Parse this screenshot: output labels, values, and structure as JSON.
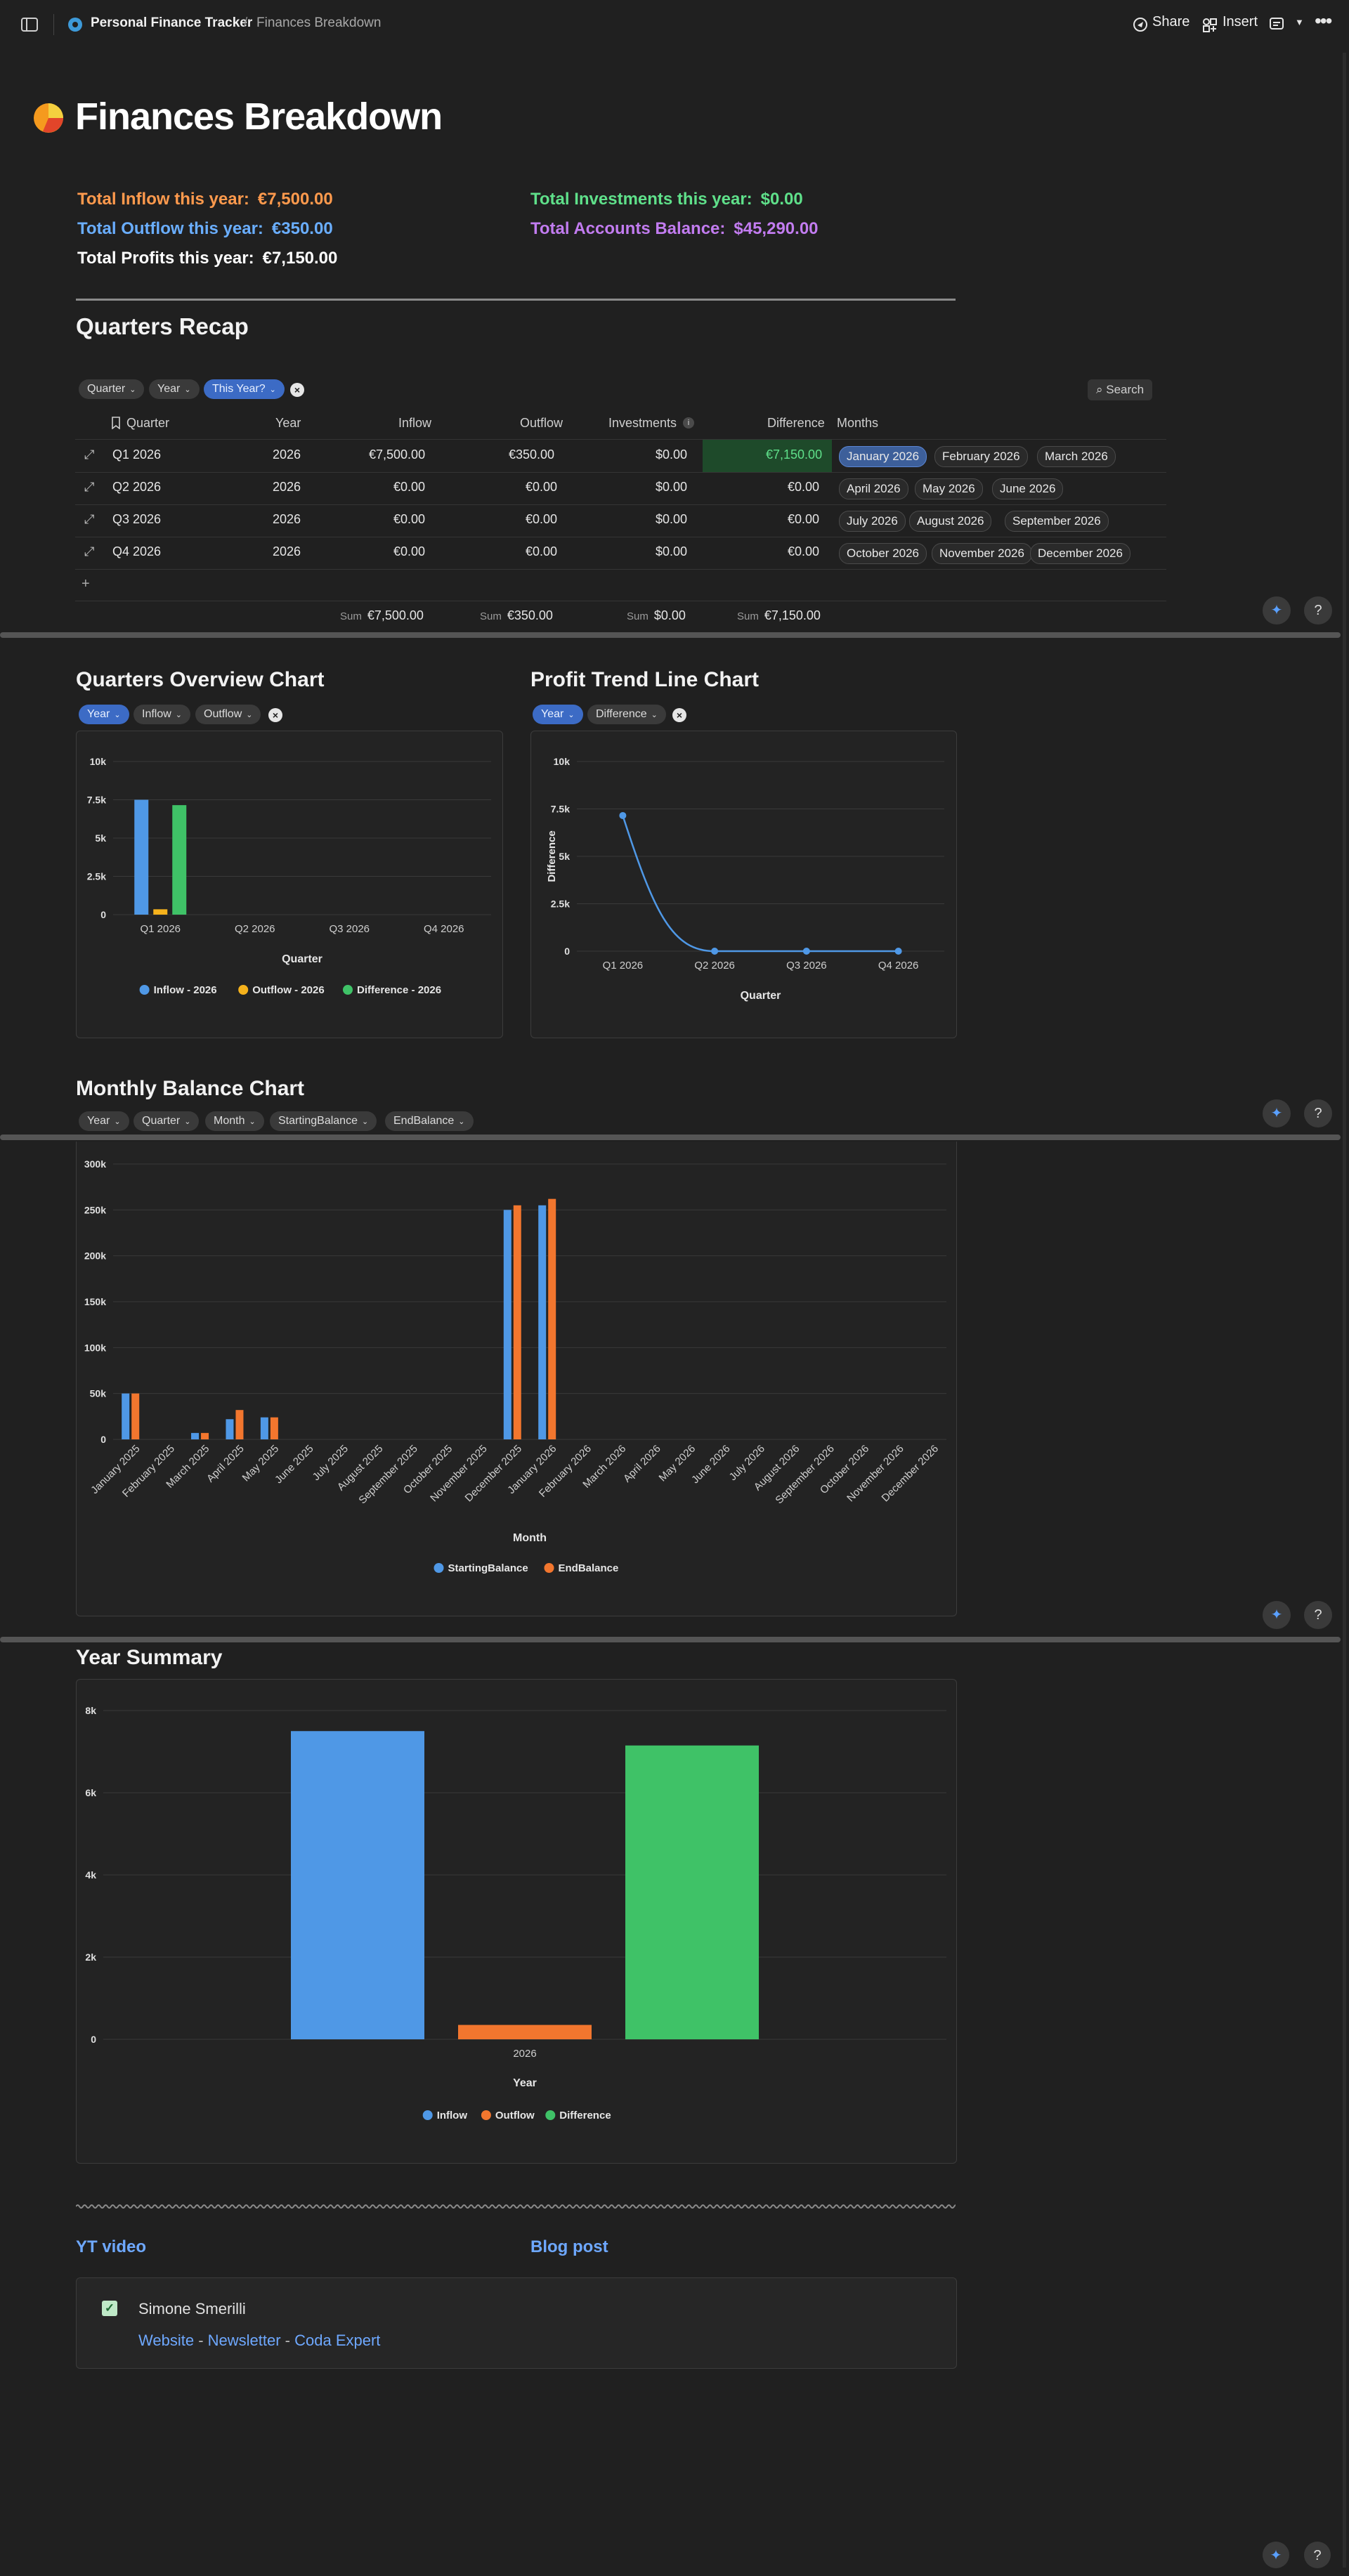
{
  "breadcrumb": {
    "doc_title": "Personal Finance Tracker",
    "separator": "/",
    "page": "Finances Breakdown"
  },
  "toolbar": {
    "share": "Share",
    "insert": "Insert"
  },
  "page_title": "Finances Breakdown",
  "stats": {
    "inflow": {
      "label": "Total Inflow this year:",
      "value": "€7,500.00",
      "color": "#ff9a4d"
    },
    "outflow": {
      "label": "Total Outflow this year:",
      "value": "€350.00",
      "color": "#6aaeff"
    },
    "profits": {
      "label": "Total Profits this year:",
      "value": "€7,150.00",
      "color": "#ffffff"
    },
    "investments": {
      "label": "Total Investments this year:",
      "value": "$0.00",
      "color": "#5fe08a"
    },
    "balance": {
      "label": "Total Accounts Balance:",
      "value": "$45,290.00",
      "color": "#c27cf0"
    }
  },
  "quarters_recap": {
    "title": "Quarters Recap",
    "filters": [
      "Quarter",
      "Year",
      "This Year?"
    ],
    "search": "Search",
    "columns": [
      "Quarter",
      "Year",
      "Inflow",
      "Outflow",
      "Investments",
      "Difference",
      "Months"
    ],
    "rows": [
      {
        "quarter": "Q1 2026",
        "year": "2026",
        "inflow": "€7,500.00",
        "outflow": "€350.00",
        "investments": "$0.00",
        "difference": "€7,150.00",
        "months": [
          "January 2026",
          "February 2026",
          "March 2026"
        ]
      },
      {
        "quarter": "Q2 2026",
        "year": "2026",
        "inflow": "€0.00",
        "outflow": "€0.00",
        "investments": "$0.00",
        "difference": "€0.00",
        "months": [
          "April 2026",
          "May 2026",
          "June 2026"
        ]
      },
      {
        "quarter": "Q3 2026",
        "year": "2026",
        "inflow": "€0.00",
        "outflow": "€0.00",
        "investments": "$0.00",
        "difference": "€0.00",
        "months": [
          "July 2026",
          "August 2026",
          "September 2026"
        ]
      },
      {
        "quarter": "Q4 2026",
        "year": "2026",
        "inflow": "€0.00",
        "outflow": "€0.00",
        "investments": "$0.00",
        "difference": "€0.00",
        "months": [
          "October 2026",
          "November 2026",
          "December 2026"
        ]
      }
    ],
    "add_row": "+",
    "sum_label": "Sum",
    "sums": {
      "inflow": "€7,500.00",
      "outflow": "€350.00",
      "investments": "$0.00",
      "difference": "€7,150.00"
    }
  },
  "qov": {
    "title": "Quarters Overview Chart",
    "filters": [
      "Year",
      "Inflow",
      "Outflow"
    ]
  },
  "ptl": {
    "title": "Profit Trend Line Chart",
    "filters": [
      "Year",
      "Difference"
    ]
  },
  "mbc": {
    "title": "Monthly Balance Chart",
    "filters": [
      "Year",
      "Quarter",
      "Month",
      "StartingBalance",
      "EndBalance"
    ]
  },
  "ys": {
    "title": "Year Summary"
  },
  "links": {
    "yt": "YT video",
    "blog": "Blog post"
  },
  "author": {
    "name": "Simone Smerilli",
    "website": "Website",
    "sep": " - ",
    "newsletter": "Newsletter",
    "expert": "Coda Expert"
  },
  "chart_data": [
    {
      "type": "bar",
      "xlabel": "Quarter",
      "ylabel": "",
      "categories": [
        "Q1 2026",
        "Q2 2026",
        "Q3 2026",
        "Q4 2026"
      ],
      "yticks": [
        "0",
        "2.5k",
        "5k",
        "7.5k",
        "10k"
      ],
      "ylim": [
        0,
        10000
      ],
      "series": [
        {
          "name": "Inflow - 2026",
          "values": [
            7500,
            0,
            0,
            0
          ],
          "color": "#4f98e6"
        },
        {
          "name": "Outflow - 2026",
          "values": [
            350,
            0,
            0,
            0
          ],
          "color": "#f5b21c"
        },
        {
          "name": "Difference - 2026",
          "values": [
            7150,
            0,
            0,
            0
          ],
          "color": "#3fc267"
        }
      ],
      "legend": "bottom"
    },
    {
      "type": "line",
      "xlabel": "Quarter",
      "ylabel": "Difference",
      "categories": [
        "Q1 2026",
        "Q2 2026",
        "Q3 2026",
        "Q4 2026"
      ],
      "yticks": [
        "0",
        "2.5k",
        "5k",
        "7.5k",
        "10k"
      ],
      "ylim": [
        0,
        10000
      ],
      "series": [
        {
          "values": [
            7150,
            0,
            0,
            0
          ],
          "color": "#4f98e6"
        }
      ]
    },
    {
      "type": "bar",
      "xlabel": "Month",
      "categories": [
        "January 2025",
        "February 2025",
        "March 2025",
        "April 2025",
        "May 2025",
        "June 2025",
        "July 2025",
        "August 2025",
        "September 2025",
        "October 2025",
        "November 2025",
        "December 2025",
        "January 2026",
        "February 2026",
        "March 2026",
        "April 2026",
        "May 2026",
        "June 2026",
        "July 2026",
        "August 2026",
        "September 2026",
        "October 2026",
        "November 2026",
        "December 2026"
      ],
      "yticks": [
        "0",
        "50k",
        "100k",
        "150k",
        "200k",
        "250k",
        "300k"
      ],
      "ylim": [
        0,
        300000
      ],
      "series": [
        {
          "name": "StartingBalance",
          "values": [
            50000,
            0,
            7000,
            22000,
            24000,
            0,
            0,
            0,
            0,
            0,
            0,
            250000,
            255000,
            0,
            0,
            0,
            0,
            0,
            0,
            0,
            0,
            0,
            0,
            0
          ],
          "color": "#4f98e6"
        },
        {
          "name": "EndBalance",
          "values": [
            50000,
            0,
            7000,
            32000,
            24000,
            0,
            0,
            0,
            0,
            0,
            0,
            255000,
            262000,
            0,
            0,
            0,
            0,
            0,
            0,
            0,
            0,
            0,
            0,
            0
          ],
          "color": "#f2762e"
        }
      ],
      "legend": "bottom"
    },
    {
      "type": "bar",
      "xlabel": "Year",
      "categories": [
        "2026"
      ],
      "yticks": [
        "0",
        "2k",
        "4k",
        "6k",
        "8k"
      ],
      "ylim": [
        0,
        8000
      ],
      "series": [
        {
          "name": "Inflow",
          "values": [
            7500
          ],
          "color": "#4f98e6"
        },
        {
          "name": "Outflow",
          "values": [
            350
          ],
          "color": "#f2762e"
        },
        {
          "name": "Difference",
          "values": [
            7150
          ],
          "color": "#3fc267"
        }
      ],
      "legend": "bottom"
    }
  ]
}
